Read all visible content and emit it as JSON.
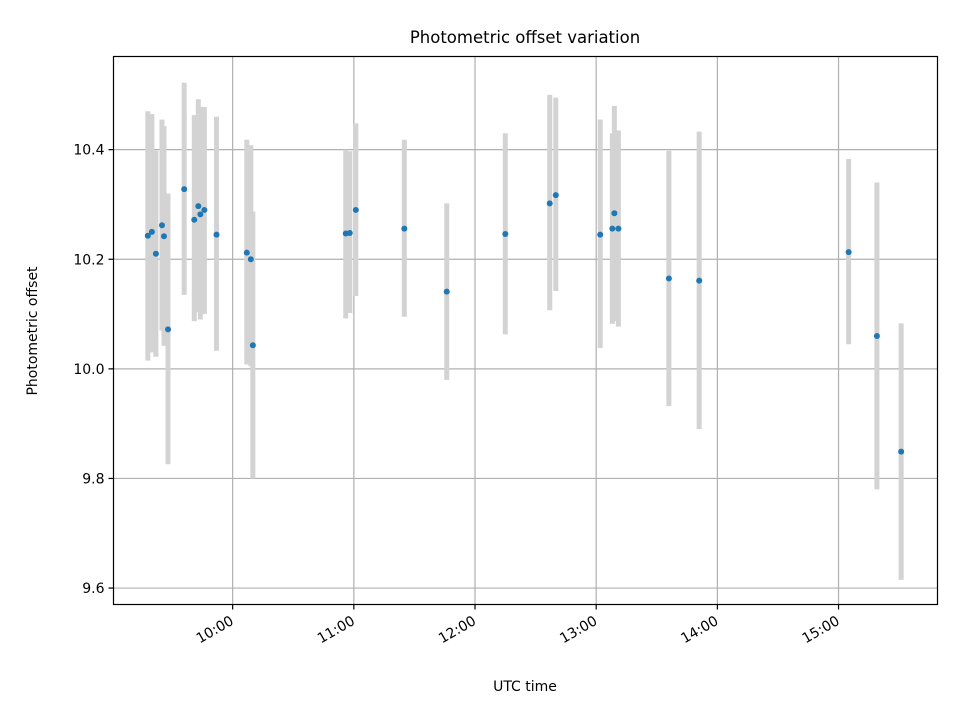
{
  "chart_data": {
    "type": "scatter",
    "title": "Photometric offset variation",
    "xlabel": "UTC time",
    "ylabel": "Photometric offset",
    "xlim": [
      "09:01",
      "15:49"
    ],
    "ylim": [
      9.57,
      10.57
    ],
    "x_ticks": [
      "10:00",
      "11:00",
      "12:00",
      "13:00",
      "14:00",
      "15:00"
    ],
    "y_ticks": [
      "9.6",
      "9.8",
      "10.0",
      "10.2",
      "10.4"
    ],
    "grid": true,
    "point_color": "#1f77b4",
    "errorbar_color": "#d3d3d3",
    "points": [
      {
        "t": "09:18",
        "y": 10.243,
        "lo": 10.015,
        "hi": 10.47
      },
      {
        "t": "09:20",
        "y": 10.25,
        "lo": 10.03,
        "hi": 10.465
      },
      {
        "t": "09:22",
        "y": 10.21,
        "lo": 10.022,
        "hi": 10.398
      },
      {
        "t": "09:25",
        "y": 10.262,
        "lo": 10.07,
        "hi": 10.455
      },
      {
        "t": "09:26",
        "y": 10.242,
        "lo": 10.042,
        "hi": 10.443
      },
      {
        "t": "09:28",
        "y": 10.072,
        "lo": 9.826,
        "hi": 10.32
      },
      {
        "t": "09:36",
        "y": 10.328,
        "lo": 10.135,
        "hi": 10.522
      },
      {
        "t": "09:41",
        "y": 10.272,
        "lo": 10.087,
        "hi": 10.463
      },
      {
        "t": "09:43",
        "y": 10.297,
        "lo": 10.103,
        "hi": 10.492
      },
      {
        "t": "09:44",
        "y": 10.282,
        "lo": 10.09,
        "hi": 10.478
      },
      {
        "t": "09:46",
        "y": 10.29,
        "lo": 10.1,
        "hi": 10.478
      },
      {
        "t": "09:52",
        "y": 10.245,
        "lo": 10.033,
        "hi": 10.46
      },
      {
        "t": "10:07",
        "y": 10.212,
        "lo": 10.008,
        "hi": 10.418
      },
      {
        "t": "10:09",
        "y": 10.2,
        "lo": 10.005,
        "hi": 10.408
      },
      {
        "t": "10:10",
        "y": 10.043,
        "lo": 9.8,
        "hi": 10.287
      },
      {
        "t": "10:56",
        "y": 10.247,
        "lo": 10.092,
        "hi": 10.4
      },
      {
        "t": "10:58",
        "y": 10.248,
        "lo": 10.102,
        "hi": 10.397
      },
      {
        "t": "11:01",
        "y": 10.29,
        "lo": 10.133,
        "hi": 10.448
      },
      {
        "t": "11:25",
        "y": 10.256,
        "lo": 10.095,
        "hi": 10.418
      },
      {
        "t": "11:46",
        "y": 10.141,
        "lo": 9.98,
        "hi": 10.302
      },
      {
        "t": "12:15",
        "y": 10.246,
        "lo": 10.063,
        "hi": 10.43
      },
      {
        "t": "12:37",
        "y": 10.302,
        "lo": 10.107,
        "hi": 10.5
      },
      {
        "t": "12:40",
        "y": 10.317,
        "lo": 10.142,
        "hi": 10.495
      },
      {
        "t": "13:02",
        "y": 10.245,
        "lo": 10.038,
        "hi": 10.455
      },
      {
        "t": "13:08",
        "y": 10.256,
        "lo": 10.082,
        "hi": 10.43
      },
      {
        "t": "13:09",
        "y": 10.284,
        "lo": 10.087,
        "hi": 10.48
      },
      {
        "t": "13:11",
        "y": 10.256,
        "lo": 10.077,
        "hi": 10.435
      },
      {
        "t": "13:36",
        "y": 10.165,
        "lo": 9.932,
        "hi": 10.398
      },
      {
        "t": "13:51",
        "y": 10.161,
        "lo": 9.89,
        "hi": 10.433
      },
      {
        "t": "15:05",
        "y": 10.213,
        "lo": 10.045,
        "hi": 10.383
      },
      {
        "t": "15:19",
        "y": 10.06,
        "lo": 9.78,
        "hi": 10.34
      },
      {
        "t": "15:31",
        "y": 9.849,
        "lo": 9.615,
        "hi": 10.083
      }
    ]
  }
}
